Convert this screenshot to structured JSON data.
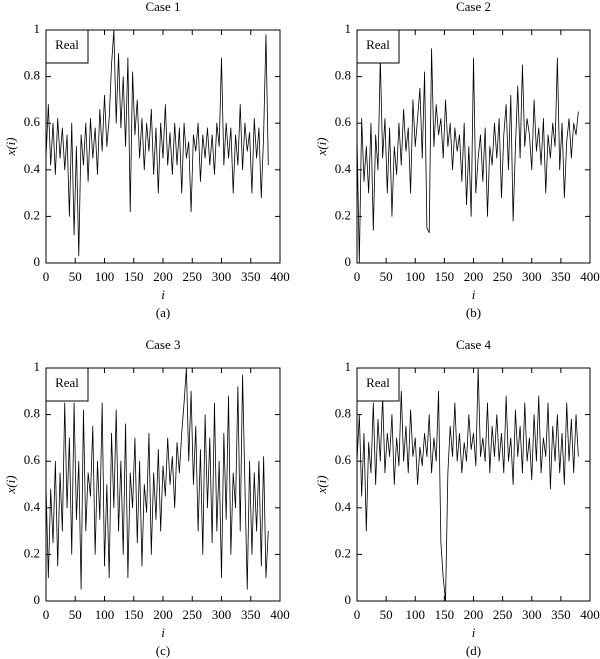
{
  "chart_data": [
    {
      "type": "line",
      "title": "Case 1",
      "xlabel": "i",
      "ylabel": "x(i)",
      "caption": "(a)",
      "xlim": [
        0,
        400
      ],
      "ylim": [
        0,
        1
      ],
      "xticks": [
        0,
        50,
        100,
        150,
        200,
        250,
        300,
        350,
        400
      ],
      "yticks": [
        0,
        0.2,
        0.4,
        0.6,
        0.8,
        1
      ],
      "legend": "upper left",
      "x": [
        0,
        4,
        8,
        12,
        16,
        20,
        24,
        28,
        32,
        36,
        40,
        44,
        48,
        52,
        56,
        60,
        64,
        68,
        72,
        76,
        80,
        84,
        88,
        92,
        96,
        100,
        104,
        108,
        112,
        116,
        120,
        124,
        128,
        132,
        136,
        140,
        144,
        148,
        152,
        156,
        160,
        164,
        168,
        172,
        176,
        180,
        184,
        188,
        192,
        196,
        200,
        204,
        208,
        212,
        216,
        220,
        224,
        228,
        232,
        236,
        240,
        244,
        248,
        252,
        256,
        260,
        264,
        268,
        272,
        276,
        280,
        284,
        288,
        292,
        296,
        300,
        304,
        308,
        312,
        316,
        320,
        324,
        328,
        332,
        336,
        340,
        344,
        348,
        352,
        356,
        360,
        364,
        368,
        372,
        376,
        380
      ],
      "series": [
        {
          "name": "Real",
          "color": "#000000",
          "values": [
            0.45,
            0.68,
            0.42,
            0.6,
            0.38,
            0.62,
            0.45,
            0.58,
            0.4,
            0.55,
            0.2,
            0.6,
            0.12,
            0.5,
            0.03,
            0.55,
            0.42,
            0.6,
            0.35,
            0.62,
            0.45,
            0.58,
            0.38,
            0.66,
            0.48,
            0.72,
            0.5,
            0.62,
            0.85,
            1.0,
            0.6,
            0.9,
            0.58,
            0.8,
            0.5,
            0.88,
            0.22,
            0.82,
            0.55,
            0.7,
            0.45,
            0.62,
            0.4,
            0.6,
            0.48,
            0.66,
            0.38,
            0.58,
            0.3,
            0.6,
            0.45,
            0.68,
            0.42,
            0.56,
            0.38,
            0.6,
            0.42,
            0.58,
            0.3,
            0.6,
            0.45,
            0.52,
            0.22,
            0.55,
            0.48,
            0.6,
            0.35,
            0.55,
            0.45,
            0.58,
            0.42,
            0.55,
            0.38,
            0.6,
            0.5,
            0.88,
            0.42,
            0.6,
            0.45,
            0.58,
            0.3,
            0.55,
            0.42,
            0.68,
            0.4,
            0.6,
            0.48,
            0.56,
            0.3,
            0.62,
            0.45,
            0.58,
            0.28,
            0.55,
            0.98,
            0.42
          ]
        }
      ]
    },
    {
      "type": "line",
      "title": "Case 2",
      "xlabel": "i",
      "ylabel": "x(i)",
      "caption": "(b)",
      "xlim": [
        0,
        400
      ],
      "ylim": [
        0,
        1
      ],
      "xticks": [
        0,
        50,
        100,
        150,
        200,
        250,
        300,
        350,
        400
      ],
      "yticks": [
        0,
        0.2,
        0.4,
        0.6,
        0.8,
        1
      ],
      "legend": "upper left",
      "x": [
        0,
        4,
        8,
        12,
        16,
        20,
        24,
        28,
        32,
        36,
        40,
        44,
        48,
        52,
        56,
        60,
        64,
        68,
        72,
        76,
        80,
        84,
        88,
        92,
        96,
        100,
        104,
        108,
        112,
        116,
        120,
        124,
        128,
        132,
        136,
        140,
        144,
        148,
        152,
        156,
        160,
        164,
        168,
        172,
        176,
        180,
        184,
        188,
        192,
        196,
        200,
        204,
        208,
        212,
        216,
        220,
        224,
        228,
        232,
        236,
        240,
        244,
        248,
        252,
        256,
        260,
        264,
        268,
        272,
        276,
        280,
        284,
        288,
        292,
        296,
        300,
        304,
        308,
        312,
        316,
        320,
        324,
        328,
        332,
        336,
        340,
        344,
        348,
        352,
        356,
        360,
        364,
        368,
        372,
        376,
        380
      ],
      "series": [
        {
          "name": "Real",
          "color": "#000000",
          "values": [
            0.55,
            0.0,
            0.62,
            0.35,
            0.5,
            0.3,
            0.6,
            0.14,
            0.55,
            0.4,
            0.88,
            0.45,
            0.62,
            0.3,
            0.58,
            0.2,
            0.5,
            0.38,
            0.6,
            0.42,
            0.66,
            0.48,
            0.58,
            0.3,
            0.7,
            0.5,
            0.62,
            0.75,
            0.45,
            0.82,
            0.15,
            0.13,
            0.92,
            0.5,
            0.68,
            0.55,
            0.62,
            0.45,
            0.7,
            0.5,
            0.6,
            0.4,
            0.58,
            0.48,
            0.55,
            0.35,
            0.6,
            0.25,
            0.5,
            0.2,
            0.88,
            0.3,
            0.45,
            0.55,
            0.35,
            0.58,
            0.2,
            0.5,
            0.42,
            0.6,
            0.45,
            0.62,
            0.28,
            0.55,
            0.68,
            0.4,
            0.72,
            0.18,
            0.5,
            0.76,
            0.45,
            0.85,
            0.5,
            0.62,
            0.55,
            0.4,
            0.7,
            0.48,
            0.58,
            0.42,
            0.62,
            0.3,
            0.55,
            0.45,
            0.6,
            0.5,
            0.88,
            0.4,
            0.6,
            0.28,
            0.52,
            0.62,
            0.45,
            0.6,
            0.55,
            0.65
          ]
        }
      ]
    },
    {
      "type": "line",
      "title": "Case 3",
      "xlabel": "i",
      "ylabel": "x(i)",
      "caption": "(c)",
      "xlim": [
        0,
        400
      ],
      "ylim": [
        0,
        1
      ],
      "xticks": [
        0,
        50,
        100,
        150,
        200,
        250,
        300,
        350,
        400
      ],
      "yticks": [
        0,
        0.2,
        0.4,
        0.6,
        0.8,
        1
      ],
      "legend": "upper left",
      "x": [
        0,
        4,
        8,
        12,
        16,
        20,
        24,
        28,
        32,
        36,
        40,
        44,
        48,
        52,
        56,
        60,
        64,
        68,
        72,
        76,
        80,
        84,
        88,
        92,
        96,
        100,
        104,
        108,
        112,
        116,
        120,
        124,
        128,
        132,
        136,
        140,
        144,
        148,
        152,
        156,
        160,
        164,
        168,
        172,
        176,
        180,
        184,
        188,
        192,
        196,
        200,
        204,
        208,
        212,
        216,
        220,
        224,
        228,
        232,
        236,
        240,
        244,
        248,
        252,
        256,
        260,
        264,
        268,
        272,
        276,
        280,
        284,
        288,
        292,
        296,
        300,
        304,
        308,
        312,
        316,
        320,
        324,
        328,
        332,
        336,
        340,
        344,
        348,
        352,
        356,
        360,
        364,
        368,
        372,
        376,
        380
      ],
      "series": [
        {
          "name": "Real",
          "color": "#000000",
          "values": [
            0.5,
            0.1,
            0.48,
            0.25,
            0.6,
            0.15,
            0.55,
            0.3,
            0.85,
            0.4,
            0.7,
            0.2,
            0.85,
            0.35,
            0.6,
            0.05,
            0.82,
            0.3,
            0.55,
            0.45,
            0.75,
            0.2,
            0.6,
            0.35,
            0.85,
            0.15,
            0.5,
            0.1,
            0.72,
            0.4,
            0.82,
            0.3,
            0.6,
            0.2,
            0.76,
            0.1,
            0.55,
            0.4,
            0.7,
            0.25,
            0.6,
            0.15,
            0.5,
            0.38,
            0.72,
            0.2,
            0.55,
            0.35,
            0.65,
            0.3,
            0.58,
            0.45,
            0.7,
            0.5,
            0.62,
            0.4,
            0.68,
            0.55,
            0.72,
            0.85,
            1.0,
            0.6,
            0.9,
            0.5,
            0.75,
            0.3,
            0.65,
            0.2,
            0.8,
            0.4,
            0.7,
            0.25,
            0.85,
            0.3,
            0.6,
            0.1,
            0.72,
            0.35,
            0.88,
            0.2,
            0.55,
            0.4,
            0.92,
            0.3,
            0.97,
            0.5,
            0.05,
            0.6,
            0.2,
            0.55,
            0.3,
            0.6,
            0.15,
            0.62,
            0.1,
            0.3
          ]
        }
      ]
    },
    {
      "type": "line",
      "title": "Case 4",
      "xlabel": "i",
      "ylabel": "x(i)",
      "caption": "(d)",
      "xlim": [
        0,
        400
      ],
      "ylim": [
        0,
        1
      ],
      "xticks": [
        0,
        50,
        100,
        150,
        200,
        250,
        300,
        350,
        400
      ],
      "yticks": [
        0,
        0.2,
        0.4,
        0.6,
        0.8,
        1
      ],
      "legend": "upper left",
      "x": [
        0,
        4,
        8,
        12,
        16,
        20,
        24,
        28,
        32,
        36,
        40,
        44,
        48,
        52,
        56,
        60,
        64,
        68,
        72,
        76,
        80,
        84,
        88,
        92,
        96,
        100,
        104,
        108,
        112,
        116,
        120,
        124,
        128,
        132,
        136,
        140,
        144,
        148,
        152,
        156,
        160,
        164,
        168,
        172,
        176,
        180,
        184,
        188,
        192,
        196,
        200,
        204,
        208,
        212,
        216,
        220,
        224,
        228,
        232,
        236,
        240,
        244,
        248,
        252,
        256,
        260,
        264,
        268,
        272,
        276,
        280,
        284,
        288,
        292,
        296,
        300,
        304,
        308,
        312,
        316,
        320,
        324,
        328,
        332,
        336,
        340,
        344,
        348,
        352,
        356,
        360,
        364,
        368,
        372,
        376,
        380
      ],
      "series": [
        {
          "name": "Real",
          "color": "#000000",
          "values": [
            0.6,
            0.8,
            0.45,
            0.72,
            0.3,
            0.68,
            0.55,
            0.85,
            0.5,
            0.78,
            0.6,
            0.88,
            0.55,
            0.72,
            0.62,
            0.8,
            0.5,
            0.7,
            0.58,
            0.9,
            0.6,
            0.75,
            0.55,
            0.82,
            0.62,
            0.7,
            0.5,
            0.66,
            0.58,
            0.72,
            0.62,
            0.8,
            0.55,
            0.7,
            0.6,
            0.9,
            0.25,
            0.1,
            0.0,
            0.55,
            0.75,
            0.62,
            0.85,
            0.6,
            0.72,
            0.55,
            0.68,
            0.6,
            0.8,
            0.65,
            0.72,
            0.58,
            1.0,
            0.62,
            0.7,
            0.6,
            0.85,
            0.55,
            0.75,
            0.62,
            0.8,
            0.6,
            0.72,
            0.55,
            0.88,
            0.6,
            0.7,
            0.5,
            0.82,
            0.62,
            0.75,
            0.55,
            0.85,
            0.6,
            0.7,
            0.52,
            0.8,
            0.6,
            0.88,
            0.55,
            0.7,
            0.62,
            0.85,
            0.48,
            0.75,
            0.6,
            0.8,
            0.55,
            0.72,
            0.5,
            0.85,
            0.6,
            0.78,
            0.55,
            0.8,
            0.62
          ]
        }
      ]
    }
  ]
}
